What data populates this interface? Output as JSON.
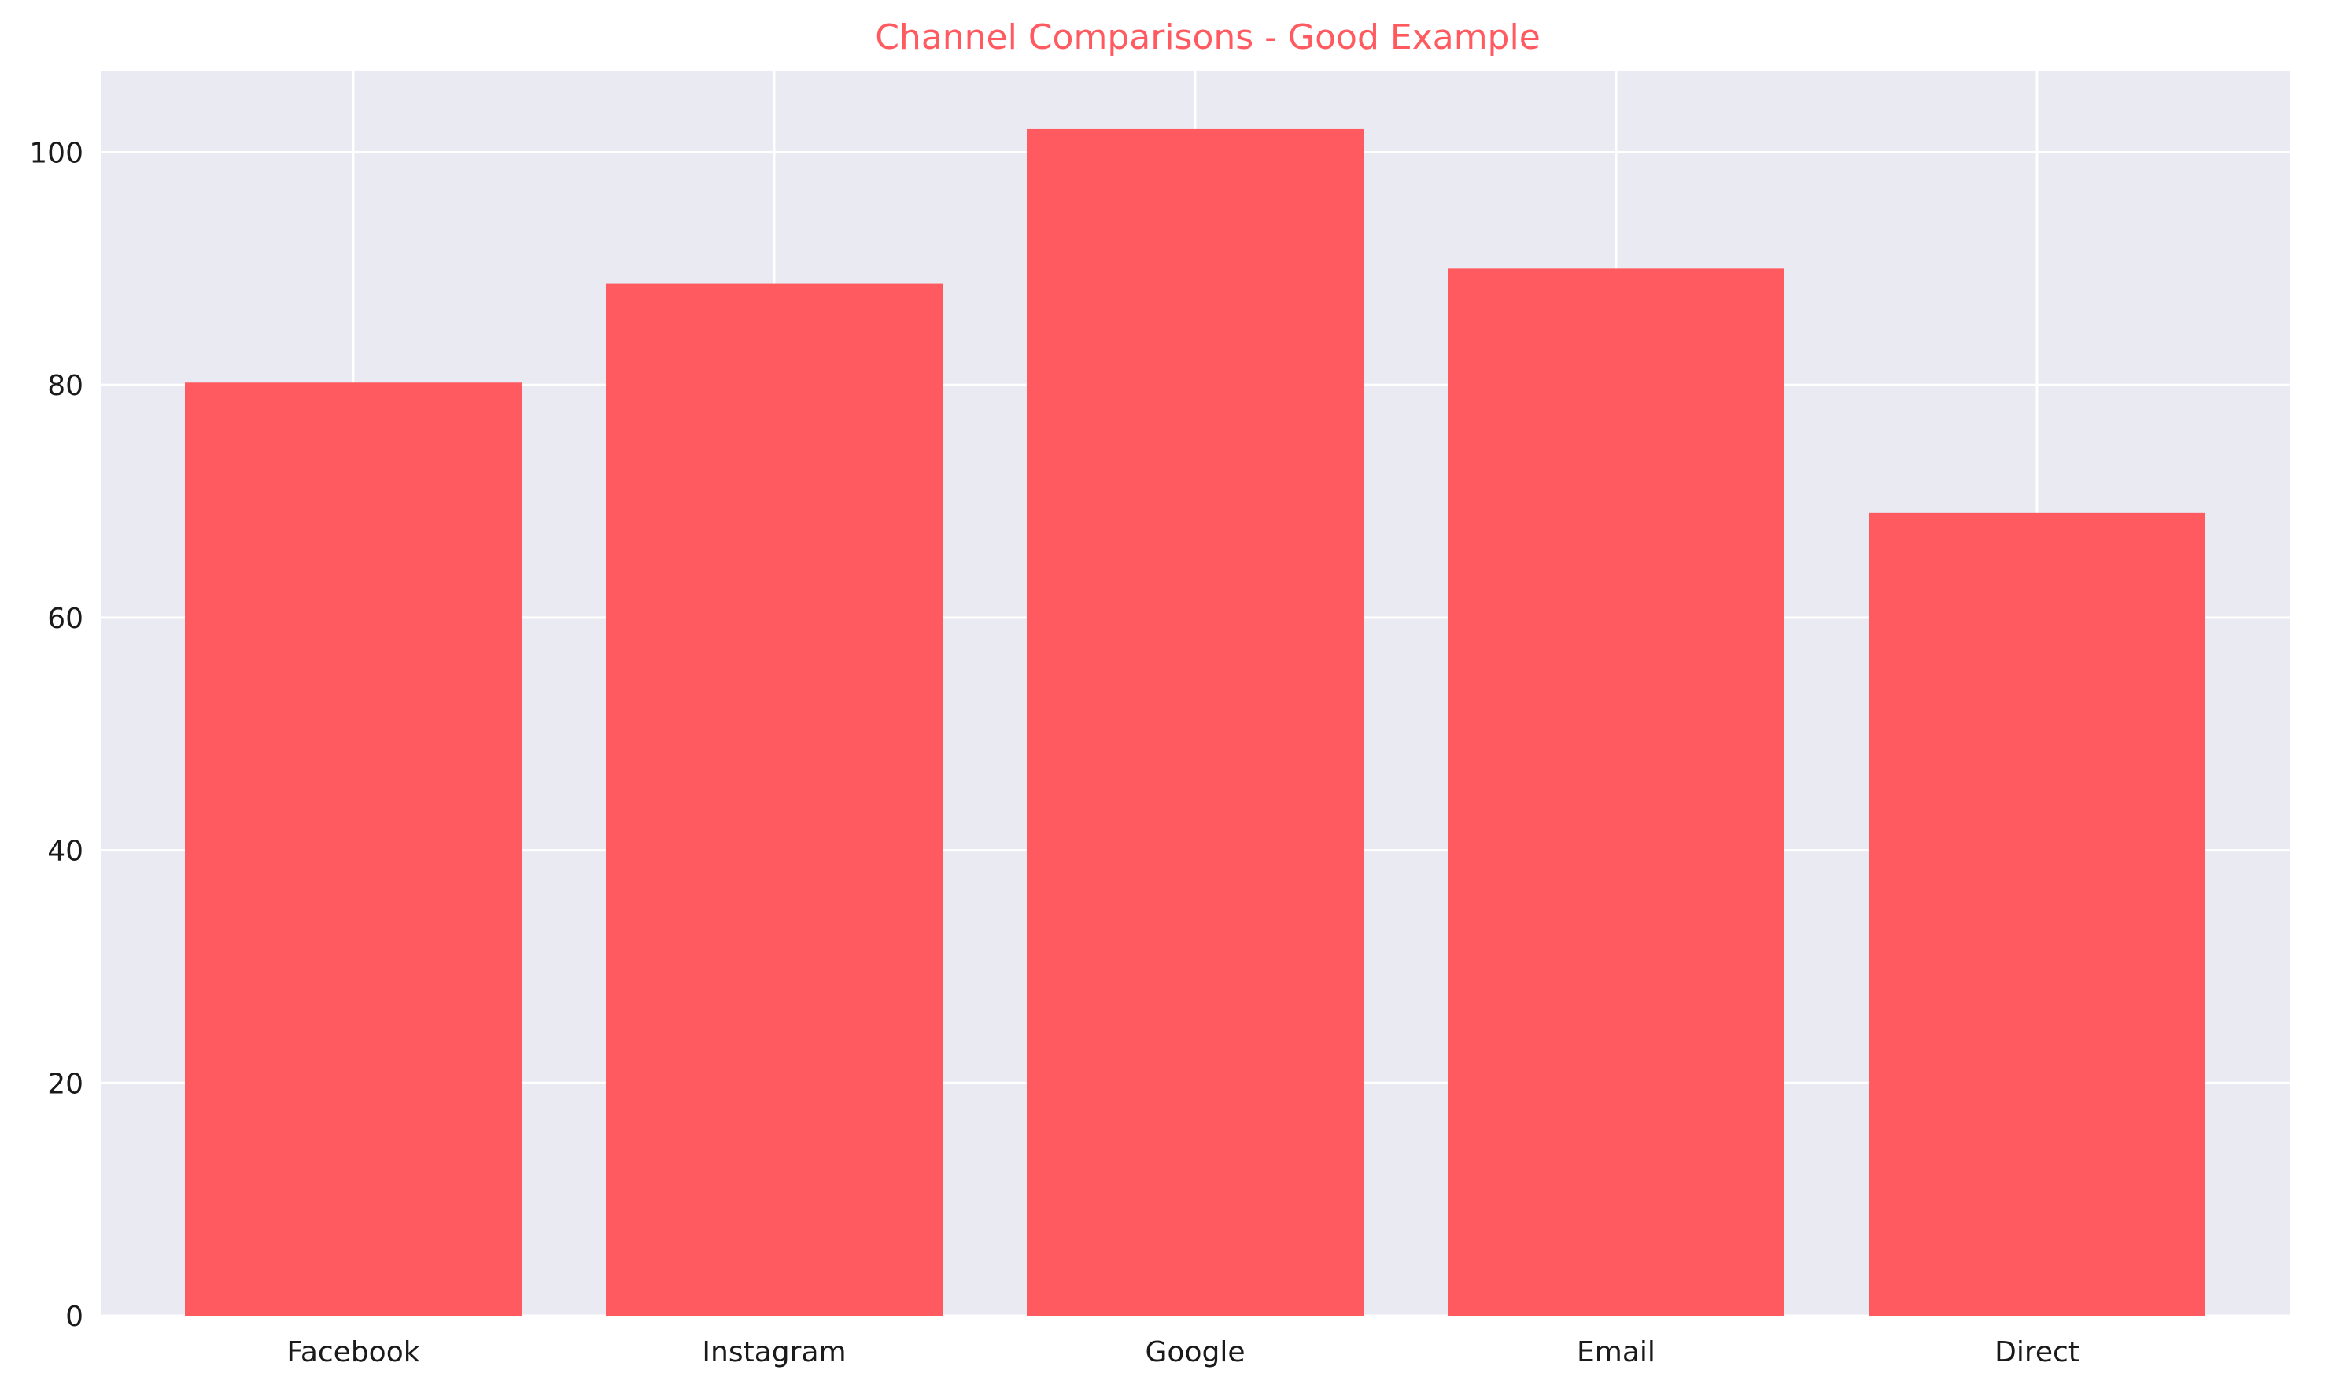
{
  "chart_data": {
    "type": "bar",
    "title": "Channel Comparisons - Good Example",
    "xlabel": "",
    "ylabel": "",
    "categories": [
      "Facebook",
      "Instagram",
      "Google",
      "Email",
      "Direct"
    ],
    "values": [
      80.2,
      88.7,
      102.0,
      90.0,
      69.0
    ],
    "ylim": [
      0,
      107
    ],
    "yticks": [
      0,
      20,
      40,
      60,
      80,
      100
    ],
    "ytick_labels": [
      "0",
      "20",
      "40",
      "60",
      "80",
      "100"
    ],
    "grid": true,
    "legend": "none",
    "colors": {
      "bar": "#ff5a60",
      "title": "#ff5a60",
      "plot_background": "#eaeaf2",
      "grid": "#ffffff"
    }
  }
}
